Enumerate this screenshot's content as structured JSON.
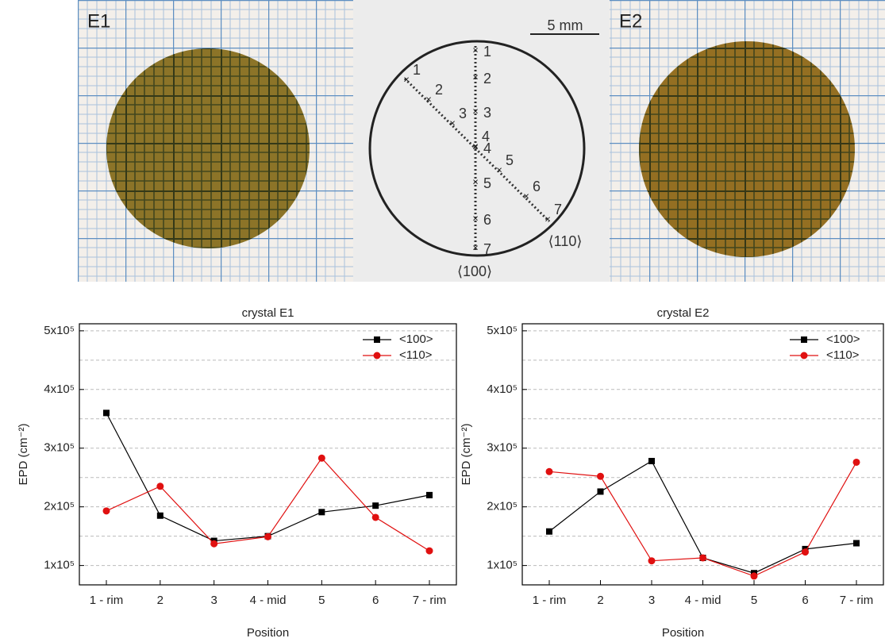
{
  "panels": {
    "left_label": "E1",
    "right_label": "E2",
    "scale": "5 mm",
    "axis_100": "⟨100⟩",
    "axis_110": "⟨110⟩",
    "points_100": [
      "1",
      "2",
      "3",
      "4",
      "5",
      "6",
      "7"
    ],
    "points_110": [
      "1",
      "2",
      "3",
      "4",
      "5",
      "6",
      "7"
    ]
  },
  "chart_data": [
    {
      "type": "line",
      "title": "crystal E1",
      "x_label": "Position",
      "y_label": "EPD (cm⁻²)",
      "categories": [
        "1 - rim",
        "2",
        "3",
        "4 - mid",
        "5",
        "6",
        "7 - rim"
      ],
      "series": [
        {
          "name": "<100>",
          "color": "#000000",
          "marker": "square",
          "values": [
            360000,
            185000,
            142000,
            150000,
            191000,
            202000,
            220000
          ]
        },
        {
          "name": "<110>",
          "color": "#e01010",
          "marker": "circle",
          "values": [
            193000,
            235000,
            137000,
            149000,
            283000,
            182000,
            125000
          ]
        }
      ],
      "ylim": [
        67000,
        512000
      ],
      "yticks": [
        {
          "value": 100000,
          "label": "1x10⁵"
        },
        {
          "value": 200000,
          "label": "2x10⁵"
        },
        {
          "value": 300000,
          "label": "3x10⁵"
        },
        {
          "value": 400000,
          "label": "4x10⁵"
        },
        {
          "value": 500000,
          "label": "5x10⁵"
        }
      ],
      "minor_gridlines": [
        150000,
        250000,
        350000,
        450000
      ],
      "grid": true,
      "legend": "upper right"
    },
    {
      "type": "line",
      "title": "crystal E2",
      "x_label": "Position",
      "y_label": "EPD (cm⁻²)",
      "categories": [
        "1 - rim",
        "2",
        "3",
        "4 - mid",
        "5",
        "6",
        "7 - rim"
      ],
      "series": [
        {
          "name": "<100>",
          "color": "#000000",
          "marker": "square",
          "values": [
            158000,
            226000,
            278000,
            113000,
            87000,
            128000,
            138000
          ]
        },
        {
          "name": "<110>",
          "color": "#e01010",
          "marker": "circle",
          "values": [
            260000,
            252000,
            108000,
            113000,
            82000,
            123000,
            276000
          ]
        }
      ],
      "ylim": [
        67000,
        512000
      ],
      "yticks": [
        {
          "value": 100000,
          "label": "1x10⁵"
        },
        {
          "value": 200000,
          "label": "2x10⁵"
        },
        {
          "value": 300000,
          "label": "3x10⁵"
        },
        {
          "value": 400000,
          "label": "4x10⁵"
        },
        {
          "value": 500000,
          "label": "5x10⁵"
        }
      ],
      "minor_gridlines": [
        150000,
        250000,
        350000,
        450000
      ],
      "grid": true,
      "legend": "upper right"
    }
  ]
}
